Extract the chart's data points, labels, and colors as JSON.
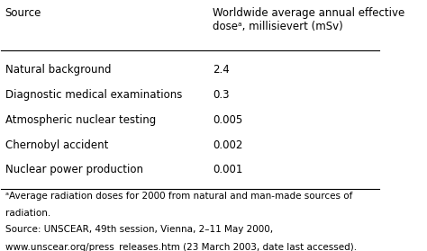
{
  "col1_header": "Source",
  "col2_header": "Worldwide average annual effective\ndoseᵃ, millisievert (mSv)",
  "rows": [
    [
      "Natural background",
      "2.4"
    ],
    [
      "Diagnostic medical examinations",
      "0.3"
    ],
    [
      "Atmospheric nuclear testing",
      "0.005"
    ],
    [
      "Chernobyl accident",
      "0.002"
    ],
    [
      "Nuclear power production",
      "0.001"
    ]
  ],
  "footnote_line1": "ᵃAverage radiation doses for 2000 from natural and man-made sources of",
  "footnote_line2": "radiation.",
  "footnote_line3": "Source: UNSCEAR, 49th session, Vienna, 2–11 May 2000,",
  "footnote_line4": "www.unscear.org/press_releases.htm (23 March 2003, date last accessed).",
  "bg_color": "#ffffff",
  "text_color": "#000000",
  "font_size": 8.5,
  "header_font_size": 8.5,
  "footnote_font_size": 7.5
}
